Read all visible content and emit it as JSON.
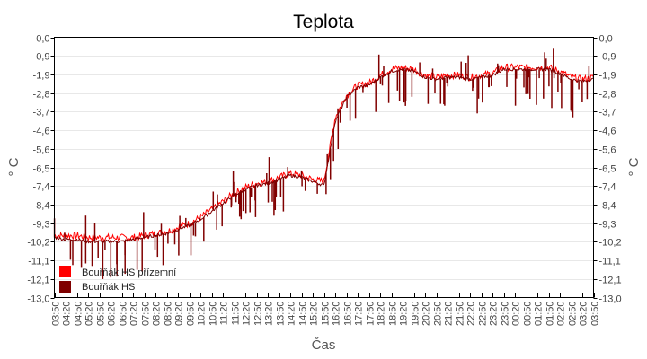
{
  "chart_data": {
    "type": "line",
    "title": "Teplota",
    "xlabel": "Čas",
    "ylabel": "° C",
    "ylim": [
      -13.0,
      0.0
    ],
    "y_ticks": [
      "0,0",
      "-0,9",
      "-1,9",
      "-2,8",
      "-3,7",
      "-4,6",
      "-5,6",
      "-6,5",
      "-7,4",
      "-8,4",
      "-9,3",
      "-10,2",
      "-11,1",
      "-12,1",
      "-13,0"
    ],
    "grid": true,
    "legend_position": "bottom-left-inside",
    "x": [
      "03:50",
      "04:20",
      "04:50",
      "05:20",
      "05:50",
      "06:20",
      "06:50",
      "07:20",
      "07:50",
      "08:20",
      "08:50",
      "09:20",
      "09:50",
      "10:20",
      "10:50",
      "11:20",
      "11:50",
      "12:20",
      "12:50",
      "13:20",
      "13:50",
      "14:20",
      "14:50",
      "15:20",
      "15:50",
      "16:20",
      "16:50",
      "17:20",
      "17:50",
      "18:20",
      "18:50",
      "19:20",
      "19:50",
      "20:20",
      "20:50",
      "21:20",
      "21:50",
      "22:20",
      "22:50",
      "23:20",
      "23:50",
      "00:20",
      "00:50",
      "01:20",
      "01:50",
      "02:20",
      "02:50",
      "03:20",
      "03:50"
    ],
    "series": [
      {
        "name": "Bouřňák HS přízemní",
        "color": "#ff0000",
        "values": [
          -9.9,
          -9.9,
          -9.9,
          -10.0,
          -10.0,
          -10.0,
          -10.0,
          -10.0,
          -9.9,
          -9.8,
          -9.7,
          -9.5,
          -9.3,
          -9.0,
          -8.6,
          -8.2,
          -7.8,
          -7.5,
          -7.3,
          -7.2,
          -7.0,
          -6.8,
          -6.9,
          -7.1,
          -7.2,
          -4.0,
          -2.9,
          -2.4,
          -2.3,
          -1.9,
          -1.6,
          -1.5,
          -1.6,
          -1.9,
          -2.0,
          -1.9,
          -1.9,
          -2.0,
          -1.9,
          -1.8,
          -1.5,
          -1.5,
          -1.5,
          -1.5,
          -1.5,
          -1.7,
          -2.0,
          -2.1,
          -2.0
        ]
      },
      {
        "name": "Bouřňák HS",
        "color": "#800000",
        "values": [
          -10.0,
          -10.1,
          -10.1,
          -10.2,
          -10.2,
          -10.2,
          -10.2,
          -10.1,
          -10.0,
          -9.9,
          -9.8,
          -9.6,
          -9.4,
          -9.1,
          -8.7,
          -8.3,
          -7.9,
          -7.6,
          -7.4,
          -7.3,
          -7.1,
          -6.9,
          -7.0,
          -7.2,
          -7.4,
          -4.2,
          -3.0,
          -2.5,
          -2.4,
          -2.0,
          -1.7,
          -1.6,
          -1.7,
          -2.0,
          -2.1,
          -2.0,
          -2.0,
          -2.1,
          -2.0,
          -1.9,
          -1.6,
          -1.6,
          -1.6,
          -1.6,
          -1.6,
          -1.8,
          -2.1,
          -2.2,
          -2.1
        ]
      }
    ]
  },
  "legend": {
    "items": [
      {
        "label": "Bouřňák HS přízemní",
        "color": "#ff0000"
      },
      {
        "label": "Bouřňák HS",
        "color": "#800000"
      }
    ]
  }
}
